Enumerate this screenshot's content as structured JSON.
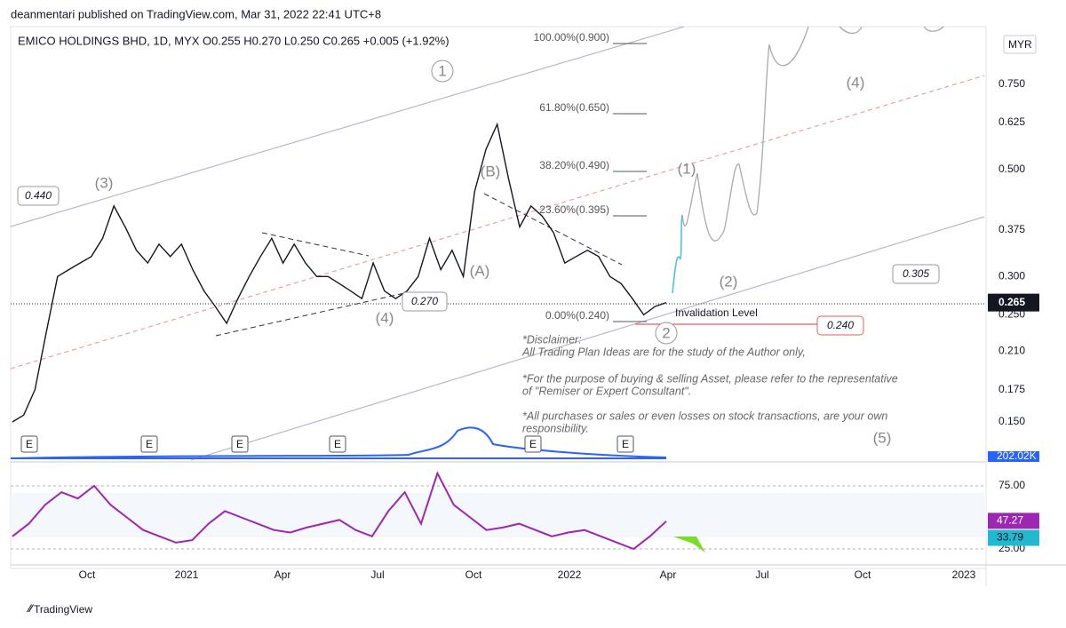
{
  "header": {
    "publisher": "deanmentari published on TradingView.com, Mar 31, 2022 22:41 UTC+8"
  },
  "legend": {
    "text": "EMICO HOLDINGS BHD, 1D, MYX  O0.255  H0.270  L0.250  C0.265  +0.005 (+1.92%)"
  },
  "price_axis": {
    "currency": "MYR",
    "ticks": [
      "0.750",
      "0.625",
      "0.500",
      "0.375",
      "0.300",
      "0.250",
      "0.210",
      "0.175",
      "0.150"
    ],
    "last_price": "0.265"
  },
  "time_axis": [
    "Oct",
    "2021",
    "Apr",
    "Jul",
    "Oct",
    "2022",
    "Apr",
    "Jul",
    "Oct",
    "2023"
  ],
  "fib_levels": [
    "100.00%(0.900)",
    "61.80%(0.650)",
    "38.20%(0.490)",
    "23.60%(0.395)",
    "0.00%(0.240)"
  ],
  "wave_labels": [
    "(3)",
    "1",
    "(B)",
    "(A)",
    "(4)",
    "(1)",
    "(2)",
    "(4)",
    "(5)",
    "2"
  ],
  "price_boxes": [
    "0.440",
    "0.270",
    "0.305",
    "0.240"
  ],
  "invalidation": "Invalidation Level",
  "disclaimer": [
    "*Disclaimer:",
    "All Trading Plan Ideas are for the study of the Author only,",
    "*For the purpose of buying & selling Asset, please refer to the representative",
    "of \"Remiser or Expert Consultant\".",
    "*All purchases or sales or even losses on stock transactions, are your own",
    "responsibility."
  ],
  "earnings_markers": [
    "E",
    "E",
    "E",
    "E",
    "E",
    "E"
  ],
  "volume": {
    "last": "202.02K"
  },
  "rsi": {
    "ticks": [
      "75.00",
      "25.00"
    ],
    "value": "47.27",
    "ma": "33.79"
  },
  "footer": "TradingView",
  "price_path": [
    0.15,
    0.155,
    0.175,
    0.23,
    0.3,
    0.31,
    0.32,
    0.33,
    0.36,
    0.42,
    0.38,
    0.34,
    0.32,
    0.35,
    0.33,
    0.35,
    0.31,
    0.28,
    0.26,
    0.24,
    0.27,
    0.3,
    0.33,
    0.36,
    0.32,
    0.35,
    0.32,
    0.3,
    0.3,
    0.29,
    0.28,
    0.27,
    0.32,
    0.28,
    0.27,
    0.28,
    0.3,
    0.36,
    0.31,
    0.34,
    0.3,
    0.45,
    0.55,
    0.62,
    0.48,
    0.38,
    0.42,
    0.4,
    0.37,
    0.32,
    0.33,
    0.34,
    0.33,
    0.3,
    0.29,
    0.27,
    0.25,
    0.26,
    0.265
  ],
  "rsi_path": [
    35,
    45,
    60,
    70,
    65,
    75,
    60,
    50,
    40,
    35,
    30,
    32,
    45,
    55,
    50,
    45,
    40,
    38,
    42,
    45,
    48,
    40,
    35,
    55,
    70,
    45,
    85,
    60,
    50,
    40,
    42,
    45,
    40,
    35,
    38,
    40,
    35,
    30,
    25,
    35,
    47
  ]
}
